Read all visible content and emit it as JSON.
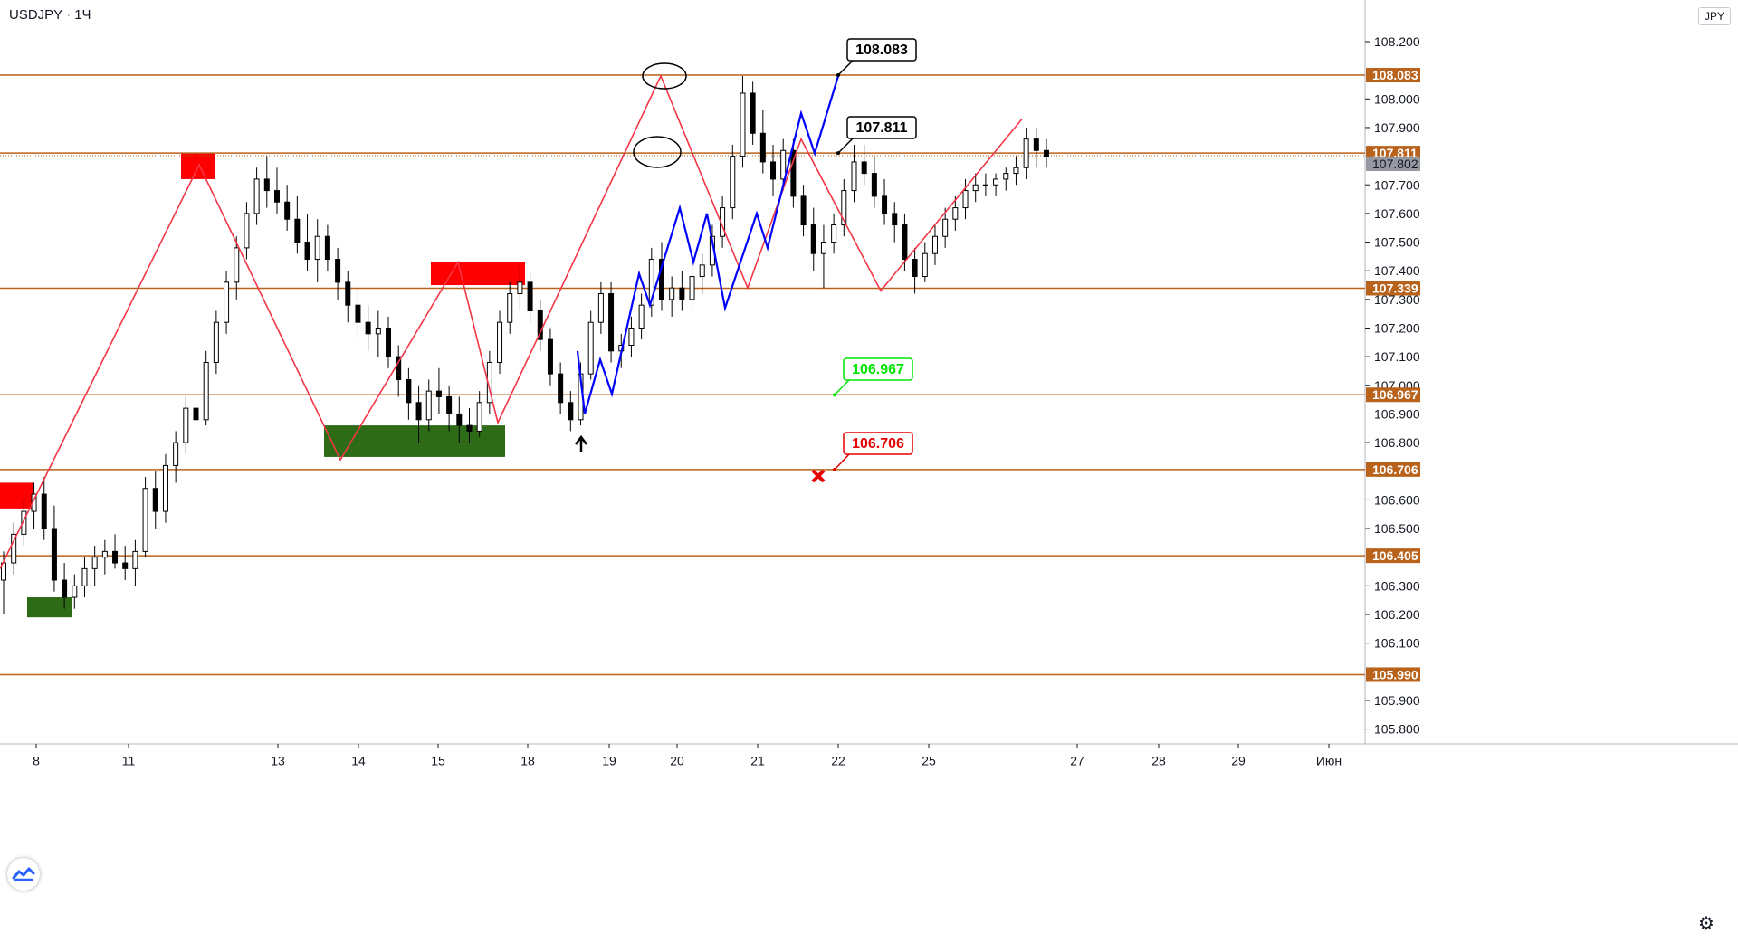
{
  "header": {
    "symbol": "USDJPY",
    "timeframe": "1Ч",
    "currency": "JPY"
  },
  "chart_data": {
    "type": "candlestick",
    "symbol": "USDJPY",
    "ylim": [
      105.75,
      108.27
    ],
    "y_ticks": [
      "108.200",
      "108.000",
      "107.900",
      "107.700",
      "107.600",
      "107.500",
      "107.400",
      "107.300",
      "107.200",
      "107.100",
      "107.000",
      "106.900",
      "106.800",
      "106.600",
      "106.500",
      "106.300",
      "106.200",
      "106.100",
      "105.900",
      "105.800"
    ],
    "x_ticks": [
      "8",
      "11",
      "13",
      "14",
      "15",
      "18",
      "19",
      "20",
      "21",
      "22",
      "25",
      "27",
      "28",
      "29",
      "Июн"
    ],
    "levels": [
      {
        "price": 108.083,
        "label": "108.083"
      },
      {
        "price": 107.811,
        "label": "107.811"
      },
      {
        "price": 107.339,
        "label": "107.339"
      },
      {
        "price": 106.967,
        "label": "106.967"
      },
      {
        "price": 106.706,
        "label": "106.706"
      },
      {
        "price": 106.405,
        "label": "106.405"
      },
      {
        "price": 105.99,
        "label": "105.990"
      }
    ],
    "current_price": {
      "price": 107.802,
      "label": "107.802"
    },
    "callouts": [
      {
        "text": "108.083",
        "color": "#000000"
      },
      {
        "text": "107.811",
        "color": "#000000"
      },
      {
        "text": "106.967",
        "color": "#00e600"
      },
      {
        "text": "106.706",
        "color": "#e60000"
      }
    ],
    "candles": [
      [
        106.32,
        106.42,
        106.2,
        106.38
      ],
      [
        106.38,
        106.52,
        106.34,
        106.48
      ],
      [
        106.48,
        106.6,
        106.44,
        106.56
      ],
      [
        106.56,
        106.66,
        106.5,
        106.62
      ],
      [
        106.62,
        106.68,
        106.46,
        106.5
      ],
      [
        106.5,
        106.58,
        106.28,
        106.32
      ],
      [
        106.32,
        106.38,
        106.22,
        106.26
      ],
      [
        106.26,
        106.34,
        106.22,
        106.3
      ],
      [
        106.3,
        106.4,
        106.26,
        106.36
      ],
      [
        106.36,
        106.44,
        106.3,
        106.4
      ],
      [
        106.4,
        106.46,
        106.34,
        106.42
      ],
      [
        106.42,
        106.48,
        106.36,
        106.38
      ],
      [
        106.38,
        106.44,
        106.32,
        106.36
      ],
      [
        106.36,
        106.46,
        106.3,
        106.42
      ],
      [
        106.42,
        106.68,
        106.4,
        106.64
      ],
      [
        106.64,
        106.7,
        106.5,
        106.56
      ],
      [
        106.56,
        106.76,
        106.52,
        106.72
      ],
      [
        106.72,
        106.84,
        106.66,
        106.8
      ],
      [
        106.8,
        106.96,
        106.76,
        106.92
      ],
      [
        106.92,
        106.98,
        106.82,
        106.88
      ],
      [
        106.88,
        107.12,
        106.86,
        107.08
      ],
      [
        107.08,
        107.26,
        107.04,
        107.22
      ],
      [
        107.22,
        107.4,
        107.18,
        107.36
      ],
      [
        107.36,
        107.52,
        107.3,
        107.48
      ],
      [
        107.48,
        107.64,
        107.44,
        107.6
      ],
      [
        107.6,
        107.76,
        107.56,
        107.72
      ],
      [
        107.72,
        107.8,
        107.62,
        107.68
      ],
      [
        107.68,
        107.76,
        107.6,
        107.64
      ],
      [
        107.64,
        107.7,
        107.54,
        107.58
      ],
      [
        107.58,
        107.66,
        107.46,
        107.5
      ],
      [
        107.5,
        107.6,
        107.4,
        107.44
      ],
      [
        107.44,
        107.58,
        107.36,
        107.52
      ],
      [
        107.52,
        107.56,
        107.4,
        107.44
      ],
      [
        107.44,
        107.48,
        107.3,
        107.36
      ],
      [
        107.36,
        107.4,
        107.22,
        107.28
      ],
      [
        107.28,
        107.34,
        107.16,
        107.22
      ],
      [
        107.22,
        107.28,
        107.12,
        107.18
      ],
      [
        107.18,
        107.26,
        107.1,
        107.2
      ],
      [
        107.2,
        107.24,
        107.06,
        107.1
      ],
      [
        107.1,
        107.14,
        106.96,
        107.02
      ],
      [
        107.02,
        107.06,
        106.88,
        106.94
      ],
      [
        106.94,
        107.0,
        106.8,
        106.88
      ],
      [
        106.88,
        107.02,
        106.84,
        106.98
      ],
      [
        106.98,
        107.06,
        106.9,
        106.96
      ],
      [
        106.96,
        107.0,
        106.84,
        106.9
      ],
      [
        106.9,
        106.96,
        106.8,
        106.86
      ],
      [
        106.86,
        106.92,
        106.8,
        106.84
      ],
      [
        106.84,
        106.98,
        106.82,
        106.94
      ],
      [
        106.94,
        107.12,
        106.9,
        107.08
      ],
      [
        107.08,
        107.26,
        107.04,
        107.22
      ],
      [
        107.22,
        107.36,
        107.18,
        107.32
      ],
      [
        107.32,
        107.42,
        107.26,
        107.36
      ],
      [
        107.36,
        107.4,
        107.22,
        107.26
      ],
      [
        107.26,
        107.3,
        107.12,
        107.16
      ],
      [
        107.16,
        107.2,
        107.0,
        107.04
      ],
      [
        107.04,
        107.08,
        106.9,
        106.94
      ],
      [
        106.94,
        106.98,
        106.84,
        106.88
      ],
      [
        106.88,
        107.08,
        106.86,
        107.04
      ],
      [
        107.04,
        107.26,
        107.02,
        107.22
      ],
      [
        107.22,
        107.36,
        107.18,
        107.32
      ],
      [
        107.32,
        107.36,
        107.08,
        107.12
      ],
      [
        107.12,
        107.18,
        107.06,
        107.14
      ],
      [
        107.14,
        107.24,
        107.1,
        107.2
      ],
      [
        107.2,
        107.32,
        107.16,
        107.28
      ],
      [
        107.28,
        107.48,
        107.24,
        107.44
      ],
      [
        107.44,
        107.5,
        107.26,
        107.3
      ],
      [
        107.3,
        107.38,
        107.24,
        107.34
      ],
      [
        107.34,
        107.4,
        107.26,
        107.3
      ],
      [
        107.3,
        107.42,
        107.26,
        107.38
      ],
      [
        107.38,
        107.46,
        107.32,
        107.42
      ],
      [
        107.42,
        107.56,
        107.38,
        107.52
      ],
      [
        107.52,
        107.66,
        107.48,
        107.62
      ],
      [
        107.62,
        107.84,
        107.58,
        107.8
      ],
      [
        107.8,
        108.08,
        107.76,
        108.02
      ],
      [
        108.02,
        108.06,
        107.84,
        107.88
      ],
      [
        107.88,
        107.96,
        107.74,
        107.78
      ],
      [
        107.78,
        107.84,
        107.66,
        107.72
      ],
      [
        107.72,
        107.86,
        107.68,
        107.82
      ],
      [
        107.82,
        107.86,
        107.62,
        107.66
      ],
      [
        107.66,
        107.7,
        107.52,
        107.56
      ],
      [
        107.56,
        107.62,
        107.4,
        107.46
      ],
      [
        107.46,
        107.56,
        107.34,
        107.5
      ],
      [
        107.5,
        107.6,
        107.46,
        107.56
      ],
      [
        107.56,
        107.72,
        107.52,
        107.68
      ],
      [
        107.68,
        107.84,
        107.64,
        107.78
      ],
      [
        107.78,
        107.84,
        107.7,
        107.74
      ],
      [
        107.74,
        107.8,
        107.62,
        107.66
      ],
      [
        107.66,
        107.72,
        107.56,
        107.6
      ],
      [
        107.6,
        107.64,
        107.5,
        107.56
      ],
      [
        107.56,
        107.6,
        107.4,
        107.44
      ],
      [
        107.44,
        107.48,
        107.32,
        107.38
      ],
      [
        107.38,
        107.5,
        107.36,
        107.46
      ],
      [
        107.46,
        107.56,
        107.42,
        107.52
      ],
      [
        107.52,
        107.62,
        107.48,
        107.58
      ],
      [
        107.58,
        107.66,
        107.54,
        107.62
      ],
      [
        107.62,
        107.72,
        107.58,
        107.68
      ],
      [
        107.68,
        107.74,
        107.64,
        107.7
      ],
      [
        107.7,
        107.74,
        107.66,
        107.7
      ],
      [
        107.7,
        107.74,
        107.66,
        107.72
      ],
      [
        107.72,
        107.76,
        107.68,
        107.74
      ],
      [
        107.74,
        107.8,
        107.7,
        107.76
      ],
      [
        107.76,
        107.9,
        107.72,
        107.86
      ],
      [
        107.86,
        107.9,
        107.76,
        107.82
      ],
      [
        107.82,
        107.86,
        107.76,
        107.8
      ]
    ]
  }
}
